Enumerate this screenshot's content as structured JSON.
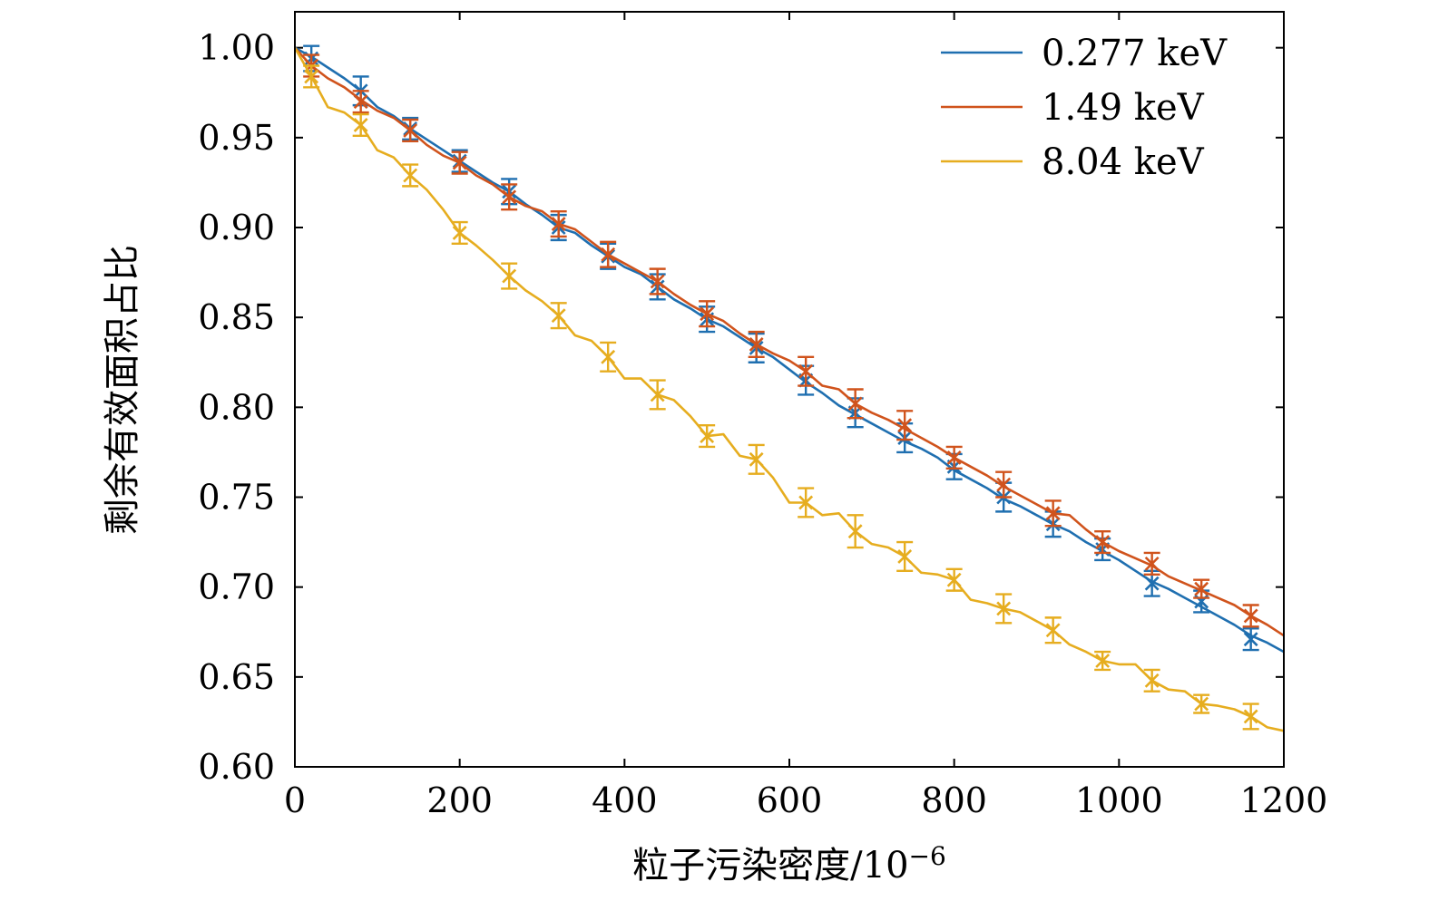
{
  "chart_data": {
    "type": "line",
    "title": "",
    "xlabel": "粒子污染密度/10",
    "xlabel_exponent": "−6",
    "ylabel": "剩余有效面积占比",
    "xlim": [
      0,
      1200
    ],
    "ylim": [
      0.6,
      1.02
    ],
    "xticks": [
      0,
      200,
      400,
      600,
      800,
      1000,
      1200
    ],
    "xtick_labels": [
      "0",
      "200",
      "400",
      "600",
      "800",
      "1000",
      "1200"
    ],
    "yticks": [
      0.6,
      0.65,
      0.7,
      0.75,
      0.8,
      0.85,
      0.9,
      0.95,
      1.0
    ],
    "ytick_labels": [
      "0.60",
      "0.65",
      "0.70",
      "0.75",
      "0.80",
      "0.85",
      "0.90",
      "0.95",
      "1.00"
    ],
    "grid": false,
    "legend_position": "top-right",
    "series": [
      {
        "name": "0.277 keV",
        "color": "#1f6fb0",
        "line": {
          "x": [
            0,
            20,
            40,
            60,
            80,
            100,
            120,
            140,
            160,
            180,
            200,
            220,
            240,
            260,
            280,
            300,
            320,
            340,
            360,
            380,
            400,
            420,
            440,
            460,
            480,
            500,
            520,
            540,
            560,
            580,
            600,
            620,
            640,
            660,
            680,
            700,
            720,
            740,
            760,
            780,
            800,
            820,
            840,
            860,
            880,
            900,
            920,
            940,
            960,
            980,
            1000,
            1020,
            1040,
            1060,
            1080,
            1100,
            1120,
            1140,
            1160,
            1180,
            1200
          ],
          "y": [
            1.0,
            0.995,
            0.989,
            0.983,
            0.976,
            0.967,
            0.962,
            0.955,
            0.949,
            0.943,
            0.937,
            0.931,
            0.925,
            0.92,
            0.913,
            0.907,
            0.9,
            0.897,
            0.89,
            0.884,
            0.878,
            0.874,
            0.867,
            0.86,
            0.855,
            0.849,
            0.845,
            0.839,
            0.833,
            0.828,
            0.821,
            0.814,
            0.808,
            0.801,
            0.796,
            0.791,
            0.786,
            0.781,
            0.777,
            0.772,
            0.765,
            0.76,
            0.755,
            0.749,
            0.745,
            0.74,
            0.735,
            0.731,
            0.725,
            0.72,
            0.715,
            0.709,
            0.703,
            0.699,
            0.694,
            0.689,
            0.684,
            0.679,
            0.673,
            0.669,
            0.664
          ]
        },
        "markers": {
          "x": [
            20,
            80,
            140,
            200,
            260,
            320,
            380,
            440,
            500,
            560,
            620,
            680,
            740,
            800,
            860,
            920,
            980,
            1040,
            1100,
            1160
          ],
          "y": [
            0.994,
            0.976,
            0.955,
            0.937,
            0.92,
            0.9,
            0.884,
            0.867,
            0.849,
            0.833,
            0.815,
            0.797,
            0.783,
            0.767,
            0.75,
            0.735,
            0.721,
            0.702,
            0.692,
            0.671
          ],
          "err": [
            0.007,
            0.008,
            0.006,
            0.006,
            0.007,
            0.007,
            0.007,
            0.007,
            0.007,
            0.008,
            0.008,
            0.008,
            0.008,
            0.007,
            0.008,
            0.007,
            0.006,
            0.007,
            0.006,
            0.006
          ]
        }
      },
      {
        "name": "1.49 keV",
        "color": "#d0531c",
        "line": {
          "x": [
            0,
            20,
            40,
            60,
            80,
            100,
            120,
            140,
            160,
            180,
            200,
            220,
            240,
            260,
            280,
            300,
            320,
            340,
            360,
            380,
            400,
            420,
            440,
            460,
            480,
            500,
            520,
            540,
            560,
            580,
            600,
            620,
            640,
            660,
            680,
            700,
            720,
            740,
            760,
            780,
            800,
            820,
            840,
            860,
            880,
            900,
            920,
            940,
            960,
            980,
            1000,
            1020,
            1040,
            1060,
            1080,
            1100,
            1120,
            1140,
            1160,
            1180,
            1200
          ],
          "y": [
            1.0,
            0.99,
            0.983,
            0.978,
            0.971,
            0.965,
            0.961,
            0.954,
            0.946,
            0.94,
            0.936,
            0.929,
            0.924,
            0.917,
            0.912,
            0.909,
            0.902,
            0.899,
            0.892,
            0.885,
            0.88,
            0.875,
            0.87,
            0.863,
            0.857,
            0.852,
            0.848,
            0.841,
            0.835,
            0.83,
            0.826,
            0.82,
            0.812,
            0.81,
            0.802,
            0.797,
            0.793,
            0.788,
            0.783,
            0.778,
            0.772,
            0.767,
            0.762,
            0.756,
            0.751,
            0.746,
            0.741,
            0.74,
            0.732,
            0.725,
            0.72,
            0.716,
            0.712,
            0.706,
            0.702,
            0.698,
            0.694,
            0.69,
            0.684,
            0.679,
            0.673
          ]
        },
        "markers": {
          "x": [
            20,
            80,
            140,
            200,
            260,
            320,
            380,
            440,
            500,
            560,
            620,
            680,
            740,
            800,
            860,
            920,
            980,
            1040,
            1100,
            1160
          ],
          "y": [
            0.99,
            0.97,
            0.954,
            0.936,
            0.917,
            0.902,
            0.885,
            0.87,
            0.852,
            0.835,
            0.82,
            0.802,
            0.79,
            0.772,
            0.757,
            0.741,
            0.725,
            0.713,
            0.699,
            0.684
          ],
          "err": [
            0.006,
            0.006,
            0.006,
            0.006,
            0.007,
            0.007,
            0.007,
            0.007,
            0.007,
            0.007,
            0.008,
            0.008,
            0.008,
            0.006,
            0.007,
            0.007,
            0.006,
            0.006,
            0.005,
            0.006
          ]
        }
      },
      {
        "name": "8.04 keV",
        "color": "#e6ad1f",
        "line": {
          "x": [
            0,
            20,
            40,
            60,
            80,
            100,
            120,
            140,
            160,
            180,
            200,
            220,
            240,
            260,
            280,
            300,
            320,
            340,
            360,
            380,
            400,
            420,
            440,
            460,
            480,
            500,
            520,
            540,
            560,
            580,
            600,
            620,
            640,
            660,
            680,
            700,
            720,
            740,
            760,
            780,
            800,
            820,
            840,
            860,
            880,
            900,
            920,
            940,
            960,
            980,
            1000,
            1020,
            1040,
            1060,
            1080,
            1100,
            1120,
            1140,
            1160,
            1180,
            1200
          ],
          "y": [
            1.0,
            0.984,
            0.967,
            0.964,
            0.957,
            0.943,
            0.939,
            0.929,
            0.921,
            0.91,
            0.897,
            0.89,
            0.882,
            0.873,
            0.865,
            0.859,
            0.851,
            0.84,
            0.837,
            0.828,
            0.816,
            0.816,
            0.807,
            0.804,
            0.795,
            0.784,
            0.785,
            0.773,
            0.771,
            0.761,
            0.747,
            0.747,
            0.74,
            0.741,
            0.731,
            0.724,
            0.722,
            0.717,
            0.708,
            0.707,
            0.704,
            0.693,
            0.691,
            0.688,
            0.686,
            0.681,
            0.676,
            0.668,
            0.664,
            0.659,
            0.657,
            0.657,
            0.648,
            0.643,
            0.642,
            0.635,
            0.634,
            0.632,
            0.628,
            0.622,
            0.62
          ]
        },
        "markers": {
          "x": [
            20,
            80,
            140,
            200,
            260,
            320,
            380,
            440,
            500,
            560,
            620,
            680,
            740,
            800,
            860,
            920,
            980,
            1040,
            1100,
            1160
          ],
          "y": [
            0.984,
            0.957,
            0.929,
            0.897,
            0.873,
            0.851,
            0.828,
            0.807,
            0.784,
            0.771,
            0.747,
            0.731,
            0.717,
            0.704,
            0.688,
            0.676,
            0.659,
            0.648,
            0.635,
            0.628
          ],
          "err": [
            0.006,
            0.006,
            0.006,
            0.006,
            0.007,
            0.007,
            0.008,
            0.008,
            0.006,
            0.008,
            0.008,
            0.009,
            0.008,
            0.006,
            0.008,
            0.007,
            0.005,
            0.006,
            0.005,
            0.007
          ]
        }
      }
    ]
  }
}
